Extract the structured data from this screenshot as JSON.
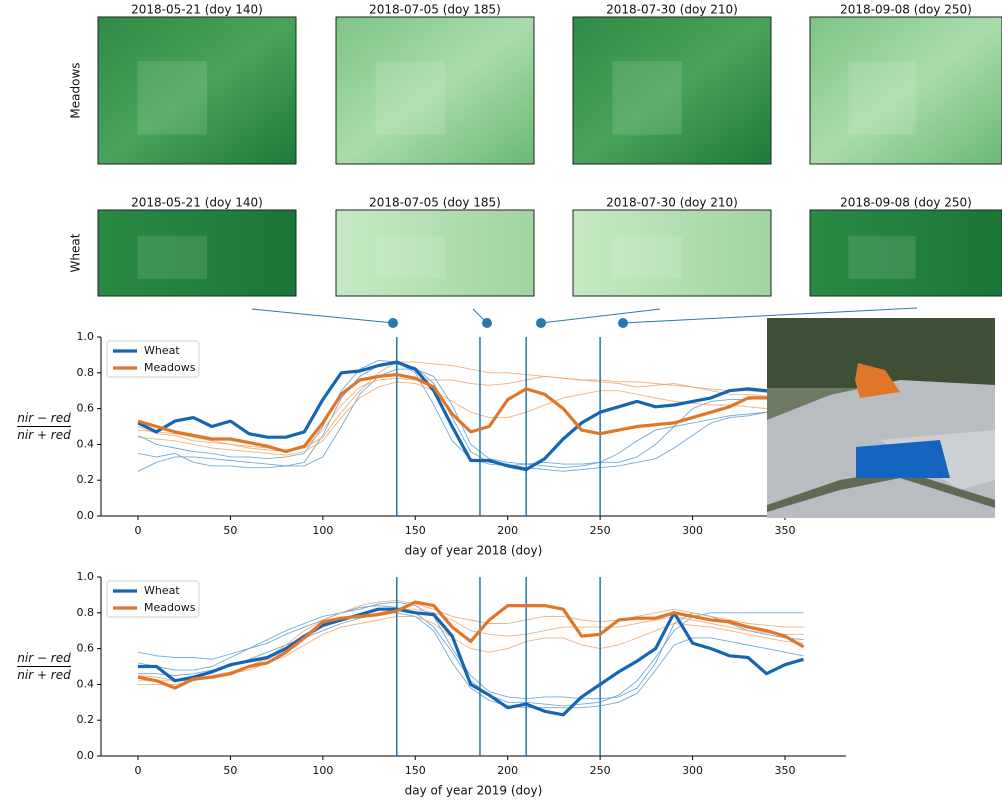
{
  "thumbnails": {
    "rows": [
      {
        "label": "Meadows",
        "titles": [
          "2018-05-21 (doy 140)",
          "2018-07-05 (doy 185)",
          "2018-07-30 (doy 210)",
          "2018-09-08 (doy 250)"
        ]
      },
      {
        "label": "Wheat",
        "titles": [
          "2018-05-21 (doy 140)",
          "2018-07-05 (doy 185)",
          "2018-07-30 (doy 210)",
          "2018-09-08 (doy 250)"
        ]
      }
    ]
  },
  "chart_data": [
    {
      "type": "line",
      "xlabel": "day of year 2018 (doy)",
      "ylabel_numerator": "nir − red",
      "ylabel_denominator": "nir + red",
      "x": [
        0,
        10,
        20,
        30,
        40,
        50,
        60,
        70,
        80,
        90,
        100,
        110,
        120,
        130,
        140,
        150,
        160,
        170,
        180,
        190,
        200,
        210,
        220,
        230,
        240,
        250,
        260,
        270,
        280,
        290,
        300,
        310,
        320,
        330,
        340,
        350,
        360
      ],
      "series": [
        {
          "name": "Wheat",
          "color": "#1565b4",
          "values": [
            0.52,
            0.47,
            0.53,
            0.55,
            0.5,
            0.53,
            0.46,
            0.44,
            0.44,
            0.47,
            0.65,
            0.8,
            0.81,
            0.84,
            0.86,
            0.82,
            0.7,
            0.5,
            0.31,
            0.31,
            0.28,
            0.26,
            0.32,
            0.43,
            0.52,
            0.58,
            0.61,
            0.64,
            0.61,
            0.62,
            0.64,
            0.66,
            0.7,
            0.71,
            0.7,
            0.7,
            0.7
          ]
        },
        {
          "name": "Meadows",
          "color": "#e0762a",
          "values": [
            0.53,
            0.5,
            0.47,
            0.45,
            0.43,
            0.43,
            0.41,
            0.39,
            0.36,
            0.39,
            0.52,
            0.68,
            0.76,
            0.78,
            0.79,
            0.77,
            0.72,
            0.57,
            0.47,
            0.5,
            0.65,
            0.71,
            0.68,
            0.6,
            0.48,
            0.46,
            0.48,
            0.5,
            0.51,
            0.52,
            0.55,
            0.58,
            0.61,
            0.66,
            0.66,
            0.64,
            0.62
          ]
        }
      ],
      "background_series": [
        {
          "color": "#5b9bd5",
          "values": [
            0.35,
            0.33,
            0.35,
            0.3,
            0.28,
            0.28,
            0.27,
            0.27,
            0.28,
            0.3,
            0.45,
            0.66,
            0.78,
            0.84,
            0.85,
            0.83,
            0.74,
            0.55,
            0.36,
            0.3,
            0.29,
            0.27,
            0.26,
            0.25,
            0.26,
            0.27,
            0.28,
            0.3,
            0.32,
            0.38,
            0.45,
            0.52,
            0.55,
            0.56,
            0.58,
            0.6,
            0.6
          ]
        },
        {
          "color": "#5b9bd5",
          "values": [
            0.45,
            0.4,
            0.38,
            0.36,
            0.35,
            0.33,
            0.33,
            0.32,
            0.33,
            0.35,
            0.5,
            0.7,
            0.82,
            0.87,
            0.86,
            0.8,
            0.62,
            0.42,
            0.32,
            0.29,
            0.28,
            0.29,
            0.3,
            0.29,
            0.29,
            0.3,
            0.3,
            0.33,
            0.4,
            0.5,
            0.6,
            0.64,
            0.65,
            0.65,
            0.66,
            0.67,
            0.67
          ]
        },
        {
          "color": "#5b9bd5",
          "values": [
            0.25,
            0.3,
            0.33,
            0.33,
            0.32,
            0.31,
            0.3,
            0.29,
            0.28,
            0.28,
            0.33,
            0.5,
            0.68,
            0.78,
            0.82,
            0.82,
            0.78,
            0.62,
            0.4,
            0.32,
            0.3,
            0.29,
            0.28,
            0.27,
            0.28,
            0.3,
            0.35,
            0.42,
            0.48,
            0.5,
            0.52,
            0.54,
            0.56,
            0.57,
            0.58,
            0.58,
            0.58
          ]
        },
        {
          "color": "#f0a36a",
          "values": [
            0.5,
            0.46,
            0.45,
            0.42,
            0.41,
            0.4,
            0.38,
            0.37,
            0.36,
            0.38,
            0.48,
            0.62,
            0.72,
            0.76,
            0.77,
            0.76,
            0.76,
            0.76,
            0.74,
            0.73,
            0.74,
            0.76,
            0.78,
            0.77,
            0.76,
            0.75,
            0.74,
            0.72,
            0.73,
            0.74,
            0.72,
            0.7,
            0.68,
            0.68,
            0.67,
            0.66,
            0.66
          ]
        },
        {
          "color": "#f0a36a",
          "values": [
            0.44,
            0.43,
            0.42,
            0.4,
            0.38,
            0.37,
            0.36,
            0.35,
            0.34,
            0.36,
            0.42,
            0.55,
            0.66,
            0.72,
            0.75,
            0.74,
            0.7,
            0.64,
            0.58,
            0.55,
            0.55,
            0.58,
            0.62,
            0.66,
            0.68,
            0.7,
            0.7,
            0.68,
            0.66,
            0.64,
            0.63,
            0.62,
            0.62,
            0.61,
            0.6,
            0.6,
            0.6
          ]
        },
        {
          "color": "#f0a36a",
          "values": [
            0.48,
            0.47,
            0.46,
            0.44,
            0.42,
            0.4,
            0.39,
            0.38,
            0.37,
            0.38,
            0.44,
            0.58,
            0.7,
            0.8,
            0.86,
            0.86,
            0.85,
            0.84,
            0.82,
            0.8,
            0.8,
            0.79,
            0.78,
            0.77,
            0.76,
            0.76,
            0.75,
            0.75,
            0.74,
            0.73,
            0.72,
            0.71,
            0.7,
            0.7,
            0.69,
            0.68,
            0.68
          ]
        }
      ],
      "vlines": [
        140,
        185,
        210,
        250
      ],
      "vline_color": "#1f77b4",
      "xlim": [
        -20,
        383
      ],
      "ylim": [
        0,
        1
      ],
      "xticks": [
        0,
        50,
        100,
        150,
        200,
        250,
        300,
        350
      ],
      "yticks": [
        {
          "value": 0,
          "label": "0.0"
        },
        0.2,
        0.4,
        0.6,
        0.8,
        {
          "value": 1,
          "label": "1.0"
        }
      ],
      "legend": "upper left",
      "grid": false
    },
    {
      "type": "line",
      "xlabel": "day of year 2019 (doy)",
      "ylabel_numerator": "nir − red",
      "ylabel_denominator": "nir + red",
      "x": [
        0,
        10,
        20,
        30,
        40,
        50,
        60,
        70,
        80,
        90,
        100,
        110,
        120,
        130,
        140,
        150,
        160,
        170,
        180,
        190,
        200,
        210,
        220,
        230,
        240,
        250,
        260,
        270,
        280,
        290,
        300,
        310,
        320,
        330,
        340,
        350,
        360
      ],
      "series": [
        {
          "name": "Wheat",
          "color": "#1565b4",
          "values": [
            0.5,
            0.5,
            0.42,
            0.44,
            0.47,
            0.51,
            0.53,
            0.55,
            0.6,
            0.67,
            0.73,
            0.76,
            0.79,
            0.82,
            0.82,
            0.8,
            0.79,
            0.67,
            0.4,
            0.34,
            0.27,
            0.29,
            0.25,
            0.23,
            0.33,
            0.4,
            0.47,
            0.53,
            0.6,
            0.8,
            0.63,
            0.6,
            0.56,
            0.55,
            0.46,
            0.51,
            0.54
          ]
        },
        {
          "name": "Meadows",
          "color": "#e0762a",
          "values": [
            0.44,
            0.42,
            0.38,
            0.43,
            0.44,
            0.46,
            0.5,
            0.52,
            0.58,
            0.66,
            0.75,
            0.77,
            0.78,
            0.79,
            0.81,
            0.86,
            0.84,
            0.72,
            0.64,
            0.76,
            0.84,
            0.84,
            0.84,
            0.82,
            0.67,
            0.68,
            0.76,
            0.77,
            0.77,
            0.8,
            0.78,
            0.76,
            0.75,
            0.72,
            0.7,
            0.67,
            0.61
          ]
        }
      ],
      "background_series": [
        {
          "color": "#5b9bd5",
          "values": [
            0.58,
            0.56,
            0.55,
            0.55,
            0.54,
            0.57,
            0.6,
            0.63,
            0.68,
            0.72,
            0.76,
            0.8,
            0.83,
            0.84,
            0.83,
            0.8,
            0.72,
            0.58,
            0.42,
            0.34,
            0.3,
            0.3,
            0.29,
            0.28,
            0.29,
            0.3,
            0.34,
            0.42,
            0.55,
            0.7,
            0.78,
            0.8,
            0.8,
            0.8,
            0.8,
            0.8,
            0.8
          ]
        },
        {
          "color": "#5b9bd5",
          "values": [
            0.46,
            0.46,
            0.45,
            0.46,
            0.48,
            0.5,
            0.54,
            0.58,
            0.62,
            0.66,
            0.7,
            0.74,
            0.77,
            0.79,
            0.8,
            0.78,
            0.7,
            0.52,
            0.38,
            0.31,
            0.28,
            0.27,
            0.27,
            0.27,
            0.27,
            0.28,
            0.3,
            0.35,
            0.48,
            0.62,
            0.66,
            0.66,
            0.64,
            0.62,
            0.6,
            0.58,
            0.56
          ]
        },
        {
          "color": "#5b9bd5",
          "values": [
            0.52,
            0.5,
            0.48,
            0.48,
            0.5,
            0.55,
            0.6,
            0.65,
            0.7,
            0.74,
            0.78,
            0.8,
            0.82,
            0.85,
            0.86,
            0.84,
            0.78,
            0.6,
            0.45,
            0.36,
            0.33,
            0.32,
            0.33,
            0.33,
            0.32,
            0.32,
            0.33,
            0.38,
            0.52,
            0.74,
            0.8,
            0.78,
            0.74,
            0.7,
            0.68,
            0.66,
            0.65
          ]
        },
        {
          "color": "#f0a36a",
          "values": [
            0.45,
            0.44,
            0.42,
            0.42,
            0.44,
            0.46,
            0.5,
            0.54,
            0.6,
            0.66,
            0.72,
            0.76,
            0.78,
            0.8,
            0.82,
            0.82,
            0.8,
            0.76,
            0.7,
            0.68,
            0.67,
            0.68,
            0.7,
            0.72,
            0.72,
            0.72,
            0.72,
            0.74,
            0.76,
            0.78,
            0.76,
            0.74,
            0.72,
            0.7,
            0.69,
            0.68,
            0.68
          ]
        },
        {
          "color": "#f0a36a",
          "values": [
            0.4,
            0.4,
            0.4,
            0.42,
            0.44,
            0.46,
            0.48,
            0.52,
            0.56,
            0.62,
            0.68,
            0.72,
            0.74,
            0.76,
            0.78,
            0.78,
            0.74,
            0.66,
            0.6,
            0.58,
            0.6,
            0.64,
            0.66,
            0.66,
            0.62,
            0.6,
            0.62,
            0.66,
            0.7,
            0.74,
            0.73,
            0.72,
            0.7,
            0.68,
            0.66,
            0.64,
            0.63
          ]
        },
        {
          "color": "#f0a36a",
          "values": [
            0.42,
            0.42,
            0.42,
            0.43,
            0.45,
            0.47,
            0.5,
            0.55,
            0.62,
            0.7,
            0.76,
            0.8,
            0.84,
            0.86,
            0.87,
            0.85,
            0.82,
            0.78,
            0.76,
            0.74,
            0.74,
            0.76,
            0.78,
            0.78,
            0.76,
            0.75,
            0.76,
            0.78,
            0.8,
            0.82,
            0.8,
            0.78,
            0.76,
            0.74,
            0.73,
            0.72,
            0.72
          ]
        }
      ],
      "vlines": [
        140,
        185,
        210,
        250
      ],
      "vline_color": "#1f77b4",
      "xlim": [
        -20,
        383
      ],
      "ylim": [
        0,
        1
      ],
      "xticks": [
        0,
        50,
        100,
        150,
        200,
        250,
        300,
        350
      ],
      "yticks": [
        {
          "value": 0,
          "label": "0.0"
        },
        0.2,
        0.4,
        0.6,
        0.8,
        {
          "value": 1,
          "label": "1.0"
        }
      ],
      "legend": "upper left",
      "grid": false
    }
  ]
}
